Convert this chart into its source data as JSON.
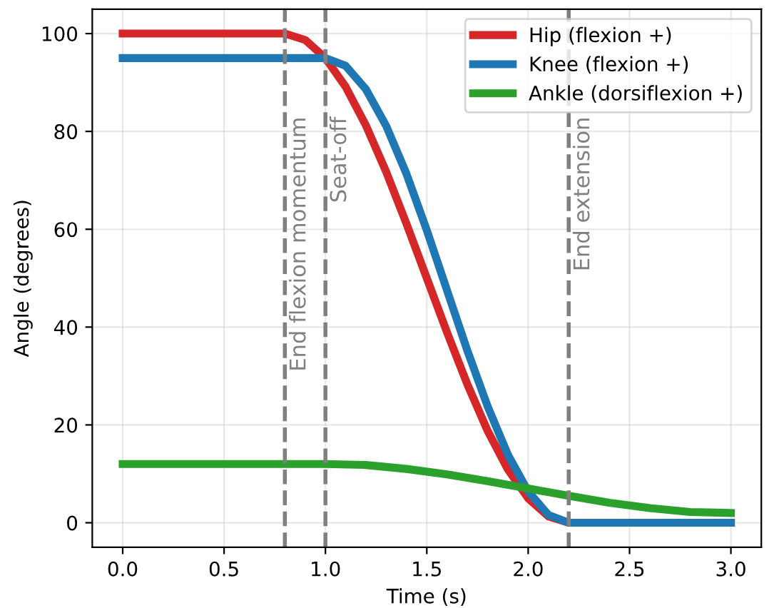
{
  "chart_data": {
    "type": "line",
    "xlabel": "Time (s)",
    "ylabel": "Angle (degrees)",
    "xlim": [
      -0.15,
      3.15
    ],
    "ylim": [
      -5,
      105
    ],
    "xticks": [
      {
        "value": 0,
        "label": "0.0"
      },
      0.5,
      {
        "value": 1,
        "label": "1.0"
      },
      1.5,
      {
        "value": 2,
        "label": "2.0"
      },
      2.5,
      {
        "value": 3,
        "label": "3.0"
      }
    ],
    "yticks": [
      0,
      20,
      40,
      60,
      80,
      100
    ],
    "grid": true,
    "legend": "top right",
    "marker": "none",
    "line_style": "solid",
    "series": [
      {
        "name": "Hip (flexion +)",
        "color": "#d62728",
        "x": [
          0,
          0.8,
          0.9,
          1.0,
          1.1,
          1.2,
          1.3,
          1.4,
          1.5,
          1.6,
          1.7,
          1.8,
          1.9,
          2.0,
          2.1,
          2.2,
          3.0
        ],
        "values": [
          100,
          100,
          98.7,
          95.0,
          89.1,
          81.2,
          71.7,
          61.1,
          50,
          38.9,
          28.3,
          18.8,
          10.9,
          5.0,
          1.3,
          0,
          0
        ]
      },
      {
        "name": "Knee (flexion +)",
        "color": "#1f77b4",
        "x": [
          0,
          1.0,
          1.1,
          1.2,
          1.3,
          1.4,
          1.5,
          1.6,
          1.7,
          1.8,
          1.9,
          2.0,
          2.1,
          2.2,
          3.0
        ],
        "values": [
          95,
          95,
          93.4,
          88.6,
          81.1,
          71.3,
          59.8,
          47.5,
          35.2,
          23.8,
          13.9,
          6.4,
          1.6,
          0,
          0
        ]
      },
      {
        "name": "Ankle (dorsiflexion +)",
        "color": "#2ca02c",
        "x": [
          0,
          1.0,
          1.2,
          1.4,
          1.6,
          1.8,
          2.0,
          2.2,
          2.4,
          2.6,
          2.8,
          3.0
        ],
        "values": [
          12,
          12,
          11.8,
          11.0,
          9.9,
          8.5,
          7.0,
          5.5,
          4.1,
          3.0,
          2.2,
          2.0
        ]
      }
    ],
    "ref_lines": [
      {
        "axis": "x",
        "value": 0.8,
        "label": "End flexion momentum",
        "color": "#808080",
        "line_style": "dashed"
      },
      {
        "axis": "x",
        "value": 1.0,
        "label": "Seat-off",
        "color": "#808080",
        "line_style": "dashed"
      },
      {
        "axis": "x",
        "value": 2.2,
        "label": "End extension",
        "color": "#808080",
        "line_style": "dashed"
      }
    ]
  }
}
